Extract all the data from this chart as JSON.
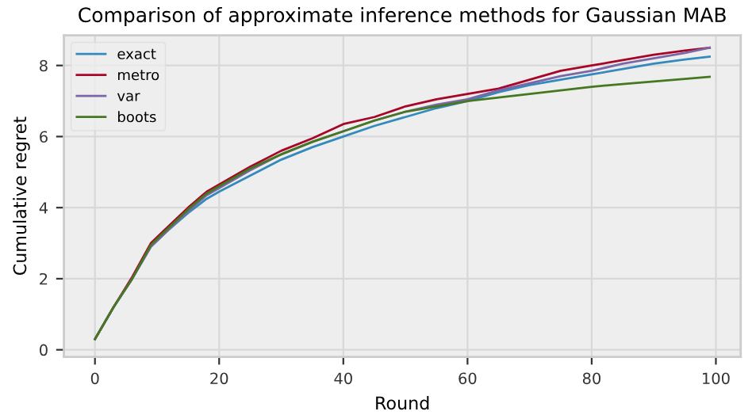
{
  "chart_data": {
    "type": "line",
    "title": "Comparison of approximate inference methods for Gaussian MAB",
    "xlabel": "Round",
    "ylabel": "Cumulative regret",
    "x": [
      0,
      3,
      6,
      9,
      12,
      15,
      18,
      20,
      25,
      30,
      35,
      40,
      45,
      50,
      55,
      60,
      65,
      70,
      75,
      80,
      85,
      90,
      95,
      99
    ],
    "series": [
      {
        "name": "exact",
        "color": "#348abd",
        "values": [
          0.3,
          1.2,
          2.0,
          2.9,
          3.4,
          3.85,
          4.25,
          4.45,
          4.9,
          5.35,
          5.7,
          6.0,
          6.3,
          6.55,
          6.8,
          7.0,
          7.25,
          7.45,
          7.6,
          7.75,
          7.9,
          8.05,
          8.17,
          8.25
        ]
      },
      {
        "name": "metro",
        "color": "#a60628",
        "values": [
          0.3,
          1.2,
          2.05,
          3.0,
          3.5,
          4.0,
          4.45,
          4.65,
          5.15,
          5.6,
          5.95,
          6.35,
          6.55,
          6.85,
          7.05,
          7.2,
          7.35,
          7.6,
          7.85,
          8.0,
          8.15,
          8.3,
          8.42,
          8.5
        ]
      },
      {
        "name": "var",
        "color": "#7a68a6",
        "values": [
          0.3,
          1.2,
          2.0,
          2.9,
          3.4,
          3.9,
          4.35,
          4.55,
          5.05,
          5.5,
          5.85,
          6.15,
          6.45,
          6.7,
          6.9,
          7.05,
          7.3,
          7.5,
          7.7,
          7.85,
          8.05,
          8.2,
          8.35,
          8.5
        ]
      },
      {
        "name": "boots",
        "color": "#467821",
        "values": [
          0.3,
          1.2,
          2.0,
          2.95,
          3.45,
          3.95,
          4.4,
          4.6,
          5.1,
          5.5,
          5.85,
          6.15,
          6.45,
          6.7,
          6.85,
          7.0,
          7.1,
          7.2,
          7.3,
          7.4,
          7.48,
          7.55,
          7.62,
          7.68
        ]
      }
    ],
    "xlim": [
      -5,
      104
    ],
    "ylim": [
      -0.2,
      8.85
    ],
    "xticks": [
      0,
      20,
      40,
      60,
      80,
      100
    ],
    "yticks": [
      0,
      2,
      4,
      6,
      8
    ],
    "grid": true,
    "legend": "top left"
  }
}
